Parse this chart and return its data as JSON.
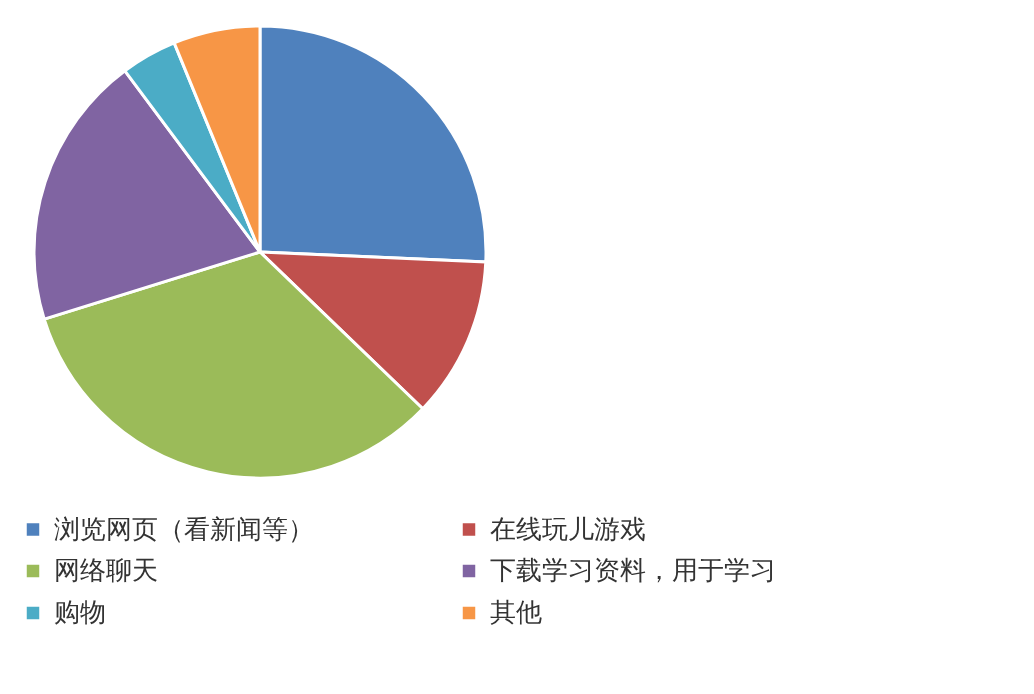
{
  "chart_data": {
    "type": "pie",
    "categories": [
      "浏览网页（看新闻等）",
      "在线玩儿游戏",
      "网络聊天",
      "下载学习资料，用于学习",
      "购物",
      "其他"
    ],
    "values": [
      25.7,
      11.5,
      33,
      19.6,
      4,
      6.2
    ],
    "colors": [
      "#4f81bd",
      "#c0504d",
      "#9bbb59",
      "#8064a2",
      "#4bacc6",
      "#f79646"
    ],
    "legend": "bottom"
  }
}
